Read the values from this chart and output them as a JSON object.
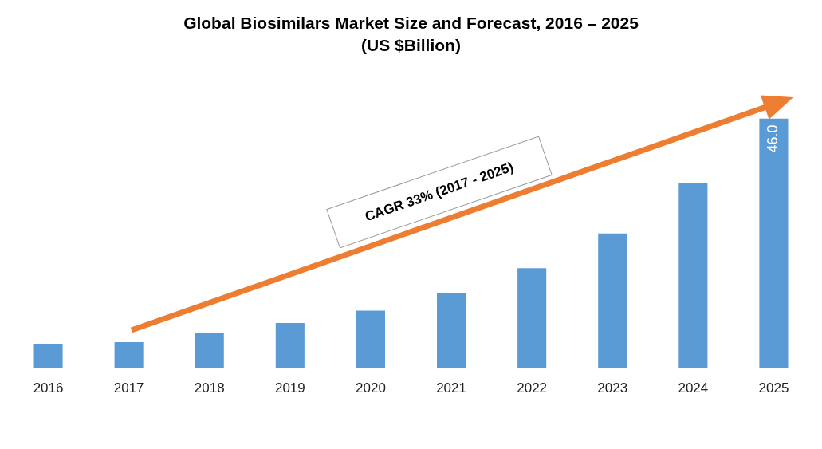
{
  "chart_data": {
    "type": "bar",
    "title": "Global Biosimilars Market Size and Forecast, 2016 – 2025",
    "subtitle": "(US $Billion)",
    "categories": [
      "2016",
      "2017",
      "2018",
      "2019",
      "2020",
      "2021",
      "2022",
      "2023",
      "2024",
      "2025"
    ],
    "values": [
      4.5,
      4.8,
      6.4,
      8.3,
      10.6,
      13.8,
      18.4,
      24.8,
      34.0,
      46.0
    ],
    "value_labels": [
      null,
      null,
      null,
      null,
      null,
      null,
      null,
      null,
      null,
      "46.0"
    ],
    "color": "#5b9bd5",
    "annotations": [
      "CAGR 33% (2017 - 2025)"
    ]
  }
}
